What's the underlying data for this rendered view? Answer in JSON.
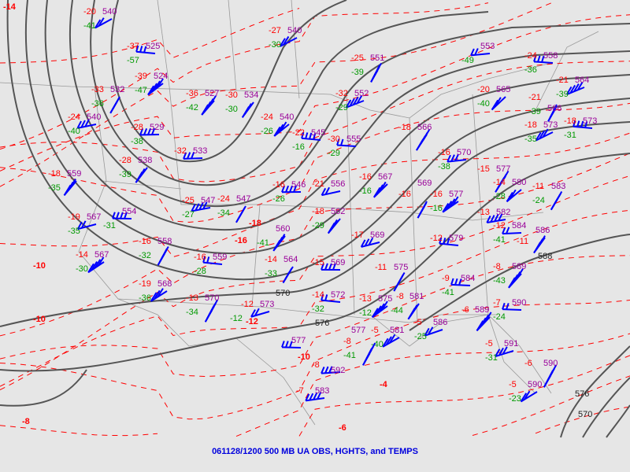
{
  "caption": "061128/1200 500 MB UA OBS, HGHTS, and TEMPS",
  "colors": {
    "background": "#e6e6e6",
    "height_contour": "#555555",
    "isotherm": "#ff0000",
    "temperature": "#ff0000",
    "dewpoint": "#009900",
    "height": "#990099",
    "wind_barb": "#0000ff",
    "borders": "#999999",
    "caption": "#0000dd"
  },
  "contour_labels": [
    "570",
    "576",
    "588",
    "576",
    "570"
  ],
  "isotherm_labels": [
    "-14",
    "-10",
    "-10",
    "-8",
    "-4",
    "-6",
    "-10",
    "-18",
    "-12",
    "-16"
  ],
  "stations": [
    {
      "t": "-20",
      "td": "-41",
      "h": "540"
    },
    {
      "t": "-37",
      "td": "-57",
      "h": "525"
    },
    {
      "t": "-39",
      "td": "-47",
      "h": "524"
    },
    {
      "t": "-33",
      "td": "-36",
      "h": "532"
    },
    {
      "t": "-24",
      "td": "-40",
      "h": "540"
    },
    {
      "t": "-28",
      "td": "-38",
      "h": "529"
    },
    {
      "t": "-28",
      "td": "-39",
      "h": "538"
    },
    {
      "t": "-18",
      "td": "-35",
      "h": "559"
    },
    {
      "t": "",
      "td": "-31",
      "h": "554"
    },
    {
      "t": "-19",
      "td": "-35",
      "h": "567"
    },
    {
      "t": "-16",
      "td": "-32",
      "h": "558"
    },
    {
      "t": "-14",
      "td": "-30",
      "h": "567"
    },
    {
      "t": "-16",
      "td": "-28",
      "h": "559"
    },
    {
      "t": "-19",
      "td": "-36",
      "h": "568"
    },
    {
      "t": "-13",
      "td": "-34",
      "h": "570"
    },
    {
      "t": "-12",
      "td": "-12",
      "h": "573"
    },
    {
      "t": "",
      "td": "",
      "h": "577"
    },
    {
      "t": "-36",
      "td": "-42",
      "h": "527"
    },
    {
      "t": "-30",
      "td": "-30",
      "h": "534"
    },
    {
      "t": "-32",
      "td": "",
      "h": "533"
    },
    {
      "t": "-25",
      "td": "-27",
      "h": "547"
    },
    {
      "t": "-24",
      "td": "-34",
      "h": "547"
    },
    {
      "t": "-24",
      "td": "-26",
      "h": "540"
    },
    {
      "t": "-22",
      "td": "-16",
      "h": "545"
    },
    {
      "t": "-27",
      "td": "-30",
      "h": "540"
    },
    {
      "t": "-25",
      "td": "-39",
      "h": "551"
    },
    {
      "t": "-32",
      "td": "-29",
      "h": "552"
    },
    {
      "t": "-30",
      "td": "-29",
      "h": "555"
    },
    {
      "t": "-16",
      "td": "-16",
      "h": "567"
    },
    {
      "t": "-18",
      "td": "",
      "h": "566"
    },
    {
      "t": "",
      "td": "-49",
      "h": "553"
    },
    {
      "t": "-16",
      "td": "-38",
      "h": "570"
    },
    {
      "t": "-15",
      "td": "",
      "h": "577"
    },
    {
      "t": "-20",
      "td": "-40",
      "h": "565"
    },
    {
      "t": "-24",
      "td": "-36",
      "h": "558"
    },
    {
      "t": "-21",
      "td": "-39",
      "h": "564"
    },
    {
      "t": "-21",
      "td": "-39",
      "h": "566"
    },
    {
      "t": "-18",
      "td": "-35",
      "h": "573"
    },
    {
      "t": "-18",
      "td": "-31",
      "h": "573"
    },
    {
      "t": "-14",
      "td": "-28",
      "h": "580"
    },
    {
      "t": "-11",
      "td": "-24",
      "h": "583"
    },
    {
      "t": "-13",
      "td": "",
      "h": "582"
    },
    {
      "t": "-12",
      "td": "-41",
      "h": "584"
    },
    {
      "t": "-11",
      "td": "",
      "h": "586"
    },
    {
      "t": "-8",
      "td": "-43",
      "h": "589"
    },
    {
      "t": "-7",
      "td": "-24",
      "h": "590"
    },
    {
      "t": "-5",
      "td": "-31",
      "h": "591"
    },
    {
      "t": "-6",
      "td": "",
      "h": "590"
    },
    {
      "t": "-5",
      "td": "-23",
      "h": "590"
    },
    {
      "t": "-12",
      "td": "",
      "h": "579"
    },
    {
      "t": "-16",
      "td": "-16",
      "h": "577"
    },
    {
      "t": "-16",
      "td": "",
      "h": "569"
    },
    {
      "t": "-17",
      "td": "",
      "h": "569"
    },
    {
      "t": "-15",
      "td": "",
      "h": "569"
    },
    {
      "t": "-18",
      "td": "-29",
      "h": "562"
    },
    {
      "t": "",
      "td": "-41",
      "h": "560"
    },
    {
      "t": "-16",
      "td": "-26",
      "h": "546"
    },
    {
      "t": "-21",
      "td": "",
      "h": "556"
    },
    {
      "t": "-11",
      "td": "",
      "h": "575"
    },
    {
      "t": "-13",
      "td": "-12",
      "h": "575"
    },
    {
      "t": "-14",
      "td": "-32",
      "h": "572"
    },
    {
      "t": "-5",
      "td": "-40",
      "h": "581"
    },
    {
      "t": "-8",
      "td": "-41",
      "h": "577"
    },
    {
      "t": "-5",
      "td": "-25",
      "h": "586"
    },
    {
      "t": "-9",
      "td": "-41",
      "h": "584"
    },
    {
      "t": "-6",
      "td": "",
      "h": "589"
    },
    {
      "t": "-8",
      "td": "-44",
      "h": "581"
    },
    {
      "t": "-8",
      "td": "",
      "h": "592"
    },
    {
      "t": "-7",
      "td": "",
      "h": "583"
    },
    {
      "t": "-14",
      "td": "-33",
      "h": "564"
    }
  ]
}
